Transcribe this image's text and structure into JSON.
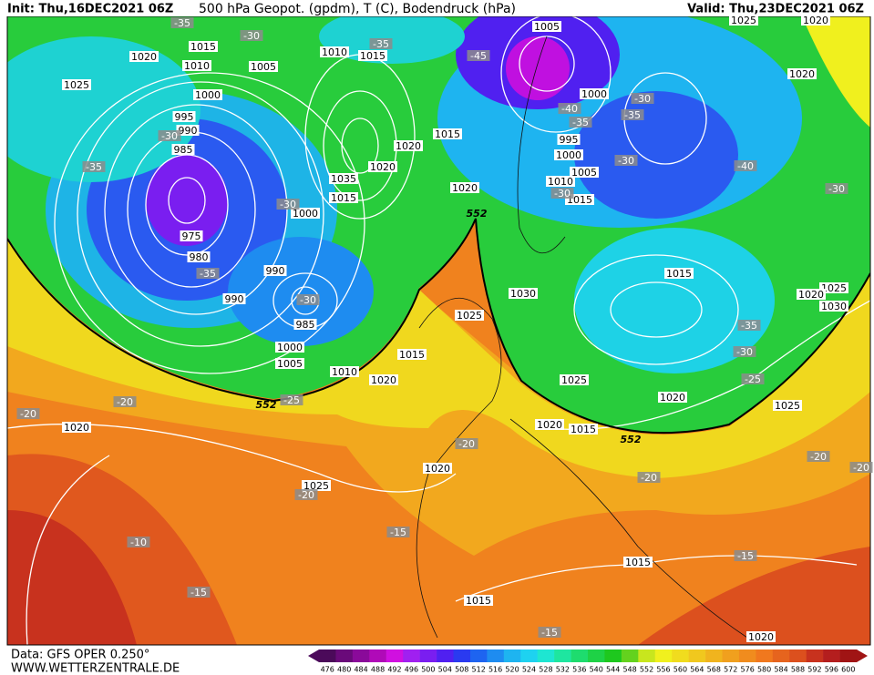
{
  "header": {
    "init": "Init: Thu,16DEC2021 06Z",
    "title": "500 hPa Geopot. (gpdm), T (C), Bodendruck (hPa)",
    "valid": "Valid: Thu,23DEC2021 06Z"
  },
  "footer": {
    "source": "Data: GFS OPER 0.250°",
    "site": "WWW.WETTERZENTRALE.DE"
  },
  "colorbar": {
    "values": [
      476,
      480,
      484,
      488,
      492,
      496,
      500,
      504,
      508,
      512,
      516,
      520,
      524,
      528,
      532,
      536,
      540,
      544,
      548,
      552,
      556,
      560,
      564,
      568,
      572,
      576,
      580,
      584,
      588,
      592,
      596,
      600
    ],
    "colors": [
      "#4b0a5a",
      "#6a0a7a",
      "#8a0a9a",
      "#b00ab8",
      "#d010e0",
      "#a020f0",
      "#7a1ef0",
      "#5020f0",
      "#2a3af0",
      "#1e64f0",
      "#1e8cf0",
      "#1eb4f0",
      "#1ed2f0",
      "#1ee6d2",
      "#1ee6a0",
      "#1edc6e",
      "#1ed246",
      "#1ec81e",
      "#64d21e",
      "#c8e61e",
      "#f0f01e",
      "#f0dc1e",
      "#f0c81e",
      "#f0b41e",
      "#f0a01e",
      "#f08c1e",
      "#f0781e",
      "#e6641e",
      "#dc501e",
      "#c8321e",
      "#b41e1e",
      "#a01414"
    ]
  },
  "map": {
    "pressure_labels": [
      1020,
      1025,
      1015,
      1010,
      1005,
      1000,
      995,
      990,
      985,
      975,
      980,
      990,
      990,
      985,
      1000,
      1005,
      1010,
      1020,
      1015,
      1000,
      1035,
      1015,
      1020,
      1020,
      1015,
      1020,
      1010,
      1015,
      1005,
      1000,
      995,
      1000,
      1005,
      1010,
      1015,
      1025,
      1020,
      1020,
      1030,
      1025,
      1015,
      1025,
      1020,
      1015,
      1020,
      1025,
      1025,
      1030,
      1020,
      1020,
      1020,
      1025,
      1015,
      1015,
      1020
    ],
    "temperature_labels": [
      -35,
      -30,
      -35,
      -45,
      -35,
      -30,
      -30,
      -35,
      -30,
      -25,
      -20,
      -20,
      -20,
      -20,
      -20,
      -15,
      -10,
      -15,
      -15,
      -15,
      -20,
      -25,
      -30,
      -35,
      -40,
      -30,
      -30,
      -35,
      -30,
      -40,
      -35,
      -30,
      -20
    ],
    "geopotential_labels": [
      552,
      552,
      552
    ]
  }
}
